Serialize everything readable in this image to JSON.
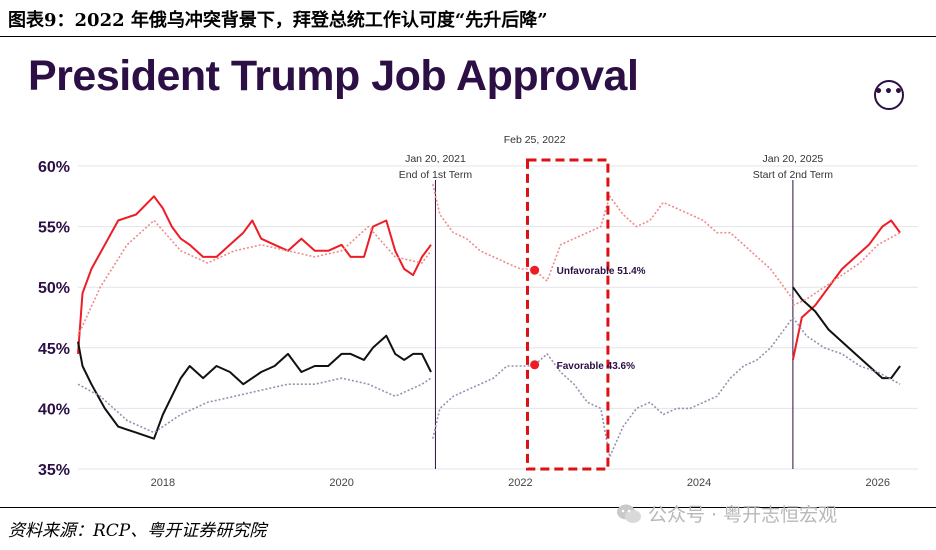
{
  "caption": "图表9：2022 年俄乌冲突背景下，拜登总统工作认可度“先升后降”",
  "title": "President Trump Job Approval",
  "more_button_label": "•••",
  "source": "资料来源：RCP、粤开证券研究院",
  "watermark": "公众号 · 粤开志恒宏观",
  "chart_data": {
    "type": "line",
    "title": "President Trump Job Approval",
    "x_range": [
      2017.05,
      2026.45
    ],
    "ylim": [
      35,
      60
    ],
    "y_ticks": [
      35,
      40,
      45,
      50,
      55,
      60
    ],
    "y_tick_labels": [
      "35%",
      "40%",
      "45%",
      "50%",
      "55%",
      "60%"
    ],
    "x_ticks": [
      2018,
      2020,
      2022,
      2024,
      2026
    ],
    "x_tick_labels": [
      "2018",
      "2020",
      "2022",
      "2024",
      "2026"
    ],
    "grid": true,
    "colors": {
      "unfavorable": "#ee1c25",
      "favorable": "#111111",
      "other_unfavorable": "#f08a8a",
      "other_favorable": "#9a8fb0",
      "highlight_box": "#dd1111",
      "vline": "#2b0f45"
    },
    "series": [
      {
        "name": "",
        "style": "solid",
        "color": "#ee1c25",
        "x": [
          2017.05,
          2017.1,
          2017.2,
          2017.35,
          2017.5,
          2017.7,
          2017.9,
          2018.0,
          2018.1,
          2018.2,
          2018.3,
          2018.45,
          2018.6,
          2018.75,
          2018.9,
          2019.0,
          2019.1,
          2019.25,
          2019.4,
          2019.55,
          2019.7,
          2019.85,
          2020.0,
          2020.1,
          2020.25,
          2020.35,
          2020.5,
          2020.6,
          2020.7,
          2020.8,
          2020.9,
          2021.0
        ],
        "y": [
          44.5,
          49.5,
          51.5,
          53.5,
          55.5,
          56.0,
          57.5,
          56.5,
          55.0,
          54.0,
          53.5,
          52.5,
          52.5,
          53.5,
          54.5,
          55.5,
          54.0,
          53.5,
          53.0,
          54.0,
          53.0,
          53.0,
          53.5,
          52.5,
          52.5,
          55.0,
          55.5,
          53.0,
          51.5,
          51.0,
          52.5,
          53.5
        ]
      },
      {
        "name": "",
        "style": "solid",
        "color": "#111111",
        "x": [
          2017.05,
          2017.1,
          2017.2,
          2017.35,
          2017.5,
          2017.7,
          2017.9,
          2018.0,
          2018.1,
          2018.2,
          2018.3,
          2018.45,
          2018.6,
          2018.75,
          2018.9,
          2019.0,
          2019.1,
          2019.25,
          2019.4,
          2019.55,
          2019.7,
          2019.85,
          2020.0,
          2020.1,
          2020.25,
          2020.35,
          2020.5,
          2020.6,
          2020.7,
          2020.8,
          2020.9,
          2021.0
        ],
        "y": [
          45.5,
          43.5,
          42.0,
          40.0,
          38.5,
          38.0,
          37.5,
          39.5,
          41.0,
          42.5,
          43.5,
          42.5,
          43.5,
          43.0,
          42.0,
          42.5,
          43.0,
          43.5,
          44.5,
          43.0,
          43.5,
          43.5,
          44.5,
          44.5,
          44.0,
          45.0,
          46.0,
          44.5,
          44.0,
          44.5,
          44.5,
          43.0
        ]
      },
      {
        "name": "",
        "style": "dotted",
        "color": "#f08a8a",
        "x": [
          2021.02,
          2021.1,
          2021.25,
          2021.4,
          2021.55,
          2021.7,
          2021.85,
          2022.0,
          2022.15,
          2022.3,
          2022.45,
          2022.6,
          2022.75,
          2022.9,
          2023.0,
          2023.15,
          2023.3,
          2023.45,
          2023.6,
          2023.75,
          2023.9,
          2024.05,
          2024.2,
          2024.35,
          2024.5,
          2024.65,
          2024.8,
          2024.95,
          2025.05
        ],
        "y": [
          58.5,
          56.0,
          54.5,
          54.0,
          53.0,
          52.5,
          52.0,
          51.5,
          51.5,
          50.5,
          53.5,
          54.0,
          54.5,
          55.0,
          57.5,
          56.0,
          55.0,
          55.5,
          57.0,
          56.5,
          56.0,
          55.5,
          54.5,
          54.5,
          53.5,
          52.5,
          51.5,
          50.0,
          49.0
        ]
      },
      {
        "name": "",
        "style": "dotted",
        "color": "#9a8fb0",
        "x": [
          2021.02,
          2021.1,
          2021.25,
          2021.4,
          2021.55,
          2021.7,
          2021.85,
          2022.0,
          2022.15,
          2022.3,
          2022.45,
          2022.6,
          2022.75,
          2022.9,
          2023.0,
          2023.15,
          2023.3,
          2023.45,
          2023.6,
          2023.75,
          2023.9,
          2024.05,
          2024.2,
          2024.35,
          2024.5,
          2024.65,
          2024.8,
          2024.95,
          2025.05
        ],
        "y": [
          37.5,
          40.0,
          41.0,
          41.5,
          42.0,
          42.5,
          43.5,
          43.5,
          43.5,
          44.5,
          43.0,
          42.0,
          40.5,
          40.0,
          36.0,
          38.5,
          40.0,
          40.5,
          39.5,
          40.0,
          40.0,
          40.5,
          41.0,
          42.5,
          43.5,
          44.0,
          45.0,
          46.5,
          47.5
        ]
      },
      {
        "name": "",
        "style": "dotted",
        "color": "#f08a8a",
        "x": [
          2017.05,
          2017.3,
          2017.6,
          2017.9,
          2018.2,
          2018.5,
          2018.8,
          2019.1,
          2019.4,
          2019.7,
          2020.0,
          2020.3,
          2020.6,
          2020.9,
          2021.0
        ],
        "y": [
          46.0,
          50.0,
          53.5,
          55.5,
          53.0,
          52.0,
          53.0,
          53.5,
          53.0,
          52.5,
          53.0,
          55.0,
          52.5,
          52.0,
          53.0
        ]
      },
      {
        "name": "",
        "style": "dotted",
        "color": "#9a8fb0",
        "x": [
          2017.05,
          2017.3,
          2017.6,
          2017.9,
          2018.2,
          2018.5,
          2018.8,
          2019.1,
          2019.4,
          2019.7,
          2020.0,
          2020.3,
          2020.6,
          2020.9,
          2021.0
        ],
        "y": [
          42.0,
          41.0,
          39.0,
          38.0,
          39.5,
          40.5,
          41.0,
          41.5,
          42.0,
          42.0,
          42.5,
          42.0,
          41.0,
          42.0,
          42.5
        ]
      },
      {
        "name": "",
        "style": "solid",
        "color": "#ee1c25",
        "x": [
          2025.05,
          2025.15,
          2025.3,
          2025.45,
          2025.6,
          2025.75,
          2025.9,
          2026.05,
          2026.15,
          2026.25
        ],
        "y": [
          44.0,
          47.5,
          48.5,
          50.0,
          51.5,
          52.5,
          53.5,
          55.0,
          55.5,
          54.5
        ]
      },
      {
        "name": "",
        "style": "solid",
        "color": "#111111",
        "x": [
          2025.05,
          2025.15,
          2025.3,
          2025.45,
          2025.6,
          2025.75,
          2025.9,
          2026.05,
          2026.15,
          2026.25
        ],
        "y": [
          50.0,
          49.0,
          48.0,
          46.5,
          45.5,
          44.5,
          43.5,
          42.5,
          42.5,
          43.5
        ]
      },
      {
        "name": "",
        "style": "dotted",
        "color": "#f08a8a",
        "x": [
          2025.05,
          2025.2,
          2025.4,
          2025.6,
          2025.8,
          2026.0,
          2026.25
        ],
        "y": [
          48.5,
          49.0,
          50.0,
          51.0,
          52.0,
          53.5,
          54.5
        ]
      },
      {
        "name": "",
        "style": "dotted",
        "color": "#9a8fb0",
        "x": [
          2025.05,
          2025.2,
          2025.4,
          2025.6,
          2025.8,
          2026.0,
          2026.25
        ],
        "y": [
          47.5,
          46.0,
          45.0,
          44.5,
          43.5,
          43.0,
          42.0
        ]
      }
    ],
    "vlines": [
      {
        "x": 2021.05,
        "label_lines": [
          "Jan 20, 2021",
          "End of 1st Term"
        ]
      },
      {
        "x": 2025.05,
        "label_lines": [
          "Jan 20, 2025",
          "Start of 2nd Term"
        ]
      }
    ],
    "top_annotation": "Feb 25, 2022",
    "highlight_range": [
      2022.08,
      2022.98
    ],
    "points": [
      {
        "x": 2022.16,
        "y": 51.4,
        "label": "Unfavorable 51.4%",
        "color": "#ee1c25"
      },
      {
        "x": 2022.16,
        "y": 43.6,
        "label": "Favorable 43.6%",
        "color": "#ee1c25"
      }
    ]
  }
}
